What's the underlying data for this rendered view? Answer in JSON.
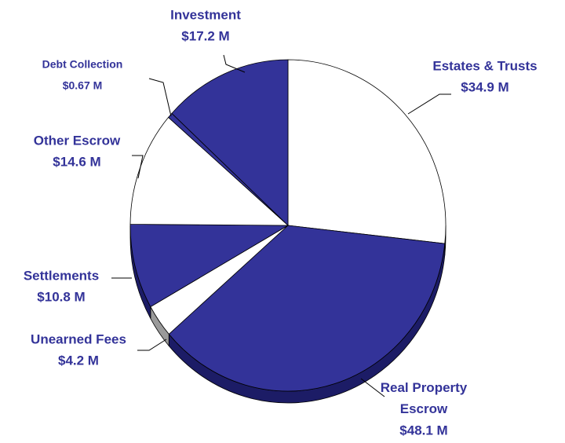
{
  "chart_data": {
    "type": "pie",
    "categories": [
      "Estates & Trusts",
      "Real Property Escrow",
      "Unearned Fees",
      "Settlements",
      "Other Escrow",
      "Debt Collection",
      "Investment"
    ],
    "values": [
      34.9,
      48.1,
      4.2,
      10.8,
      14.6,
      0.67,
      17.2
    ],
    "value_labels": [
      "$34.9 M",
      "$48.1 M",
      "$4.2 M",
      "$10.8 M",
      "$14.6 M",
      "$0.67 M",
      "$17.2 M"
    ],
    "colors": [
      "#ffffff",
      "#333399",
      "#ffffff",
      "#333399",
      "#ffffff",
      "#333399",
      "#333399"
    ]
  }
}
